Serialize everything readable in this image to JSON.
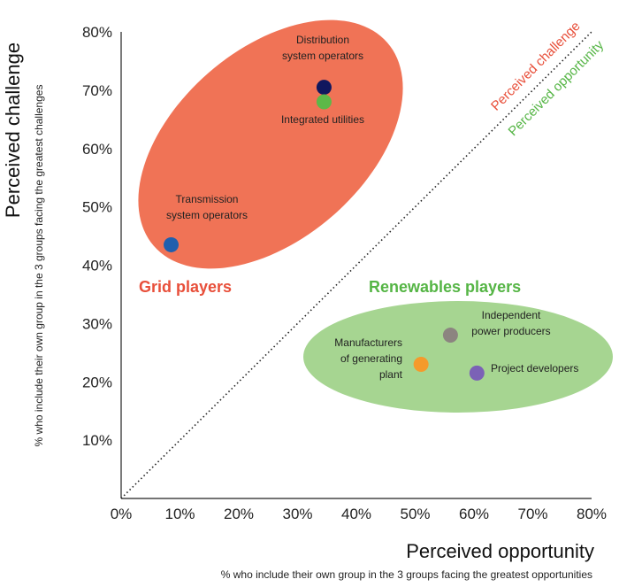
{
  "chart_data": {
    "type": "scatter",
    "xlabel": "Perceived opportunity",
    "xlabel_sub": "% who include their own group in the 3 groups facing the greatest opportunities",
    "ylabel": "Perceived challenge",
    "ylabel_sub": "% who include their own group in the 3 groups facing the greatest challenges",
    "xlim": [
      0,
      80
    ],
    "ylim": [
      0,
      80
    ],
    "x_ticks": [
      "0%",
      "10%",
      "20%",
      "30%",
      "40%",
      "50%",
      "60%",
      "70%",
      "80%"
    ],
    "y_ticks": [
      "10%",
      "20%",
      "30%",
      "40%",
      "50%",
      "60%",
      "70%",
      "80%"
    ],
    "grid": false,
    "points": [
      {
        "label_lines": [
          "Distribution",
          "system operators"
        ],
        "x": 34.5,
        "y": 70.5,
        "color": "#10175e"
      },
      {
        "label_lines": [
          "Integrated utilities"
        ],
        "x": 34.5,
        "y": 68,
        "color": "#5cb848"
      },
      {
        "label_lines": [
          "Transmission",
          "system operators"
        ],
        "x": 8.5,
        "y": 43.5,
        "color": "#1f5fae"
      },
      {
        "label_lines": [
          "Independent",
          "power producers"
        ],
        "x": 56,
        "y": 28,
        "color": "#8c8480"
      },
      {
        "label_lines": [
          "Manufacturers",
          "of generating",
          "plant"
        ],
        "x": 51,
        "y": 23,
        "color": "#f59a2b"
      },
      {
        "label_lines": [
          "Project developers"
        ],
        "x": 60.5,
        "y": 21.5,
        "color": "#7b62b6"
      }
    ],
    "groups": [
      {
        "name": "Grid players",
        "color": "#f07356",
        "text_color": "#e84f3a"
      },
      {
        "name": "Renewables players",
        "color": "#a6d591",
        "text_color": "#55b545"
      }
    ],
    "diagonal": {
      "labels": [
        "Perceived challenge",
        "Perceived opportunity"
      ],
      "colors": [
        "#e84f3a",
        "#55b545"
      ]
    }
  }
}
